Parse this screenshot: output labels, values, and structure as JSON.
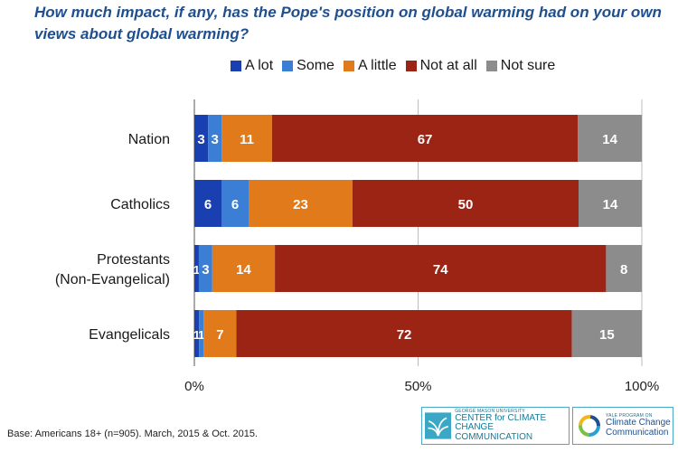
{
  "title": "How much impact, if any, has the Pope's position on global warming had on your own views about global warming?",
  "footnote": "Base: Americans 18+ (n=905). March, 2015 & Oct. 2015.",
  "logos": {
    "gmu": {
      "small": "GEORGE MASON UNIVERSITY",
      "line1": "CENTER for CLIMATE CHANGE",
      "line2": "COMMUNICATION"
    },
    "yale": {
      "small": "YALE PROGRAM ON",
      "line1": "Climate Change",
      "line2": "Communication"
    }
  },
  "chart_data": {
    "type": "bar",
    "orientation": "horizontal",
    "stacked": true,
    "percent_stacked": true,
    "categories": [
      "Nation",
      "Catholics",
      "Protestants\n(Non-Evangelical)",
      "Evangelicals"
    ],
    "series": [
      {
        "name": "A lot",
        "color": "#1a3fb0",
        "values": [
          3,
          6,
          1,
          1
        ]
      },
      {
        "name": "Some",
        "color": "#3a7ed6",
        "values": [
          3,
          6,
          3,
          1
        ]
      },
      {
        "name": "A little",
        "color": "#e07a1a",
        "values": [
          11,
          23,
          14,
          7
        ]
      },
      {
        "name": "Not at all",
        "color": "#9b2415",
        "values": [
          67,
          50,
          74,
          72
        ]
      },
      {
        "name": "Not sure",
        "color": "#8c8c8c",
        "values": [
          14,
          14,
          8,
          15
        ]
      }
    ],
    "xtick_labels": [
      "0%",
      "50%",
      "100%"
    ],
    "legend_position": "top",
    "grid": true
  }
}
